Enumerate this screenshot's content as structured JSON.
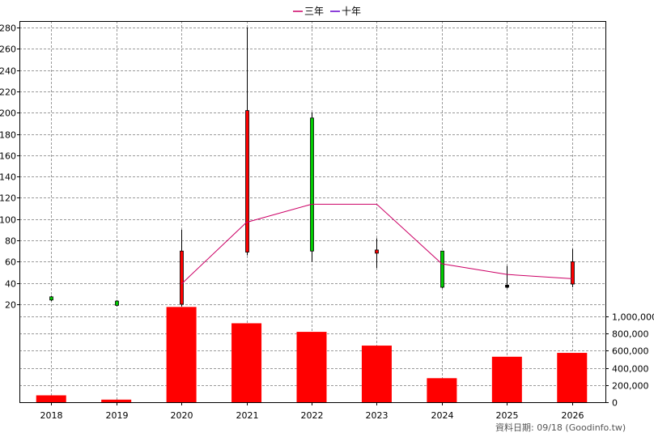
{
  "legend": [
    {
      "label": "三年",
      "color": "#cc0066"
    },
    {
      "label": "十年",
      "color": "#6600cc"
    }
  ],
  "footer": "資料日期: 09/18  (Goodinfo.tw)",
  "chart_data": {
    "type": "candlestick+line+bar",
    "categories": [
      "2018",
      "2019",
      "2020",
      "2021",
      "2022",
      "2023",
      "2024",
      "2025",
      "2026"
    ],
    "price_axis": {
      "ylim": [
        20,
        280
      ],
      "ticks": [
        20,
        40,
        60,
        80,
        100,
        120,
        140,
        160,
        180,
        200,
        220,
        240,
        260,
        280
      ]
    },
    "volume_axis": {
      "ylim": [
        0,
        1000000
      ],
      "ticks": [
        0,
        200000,
        400000,
        600000,
        800000,
        1000000
      ],
      "tick_labels": [
        "0",
        "200,000",
        "400,000",
        "600,000",
        "800,000",
        "1,000,000"
      ]
    },
    "candles": [
      {
        "year": "2018",
        "open": 24,
        "close": 27,
        "high": 28,
        "low": 23,
        "color": "#00cc00"
      },
      {
        "year": "2019",
        "open": 19,
        "close": 23,
        "high": 24,
        "low": 18,
        "color": "#00cc00"
      },
      {
        "year": "2020",
        "open": 20,
        "close": 70,
        "high": 90,
        "low": 18,
        "color": "#ff0000"
      },
      {
        "year": "2021",
        "open": 69,
        "close": 202,
        "high": 280,
        "low": 66,
        "color": "#ff0000"
      },
      {
        "year": "2022",
        "open": 195,
        "close": 70,
        "high": 200,
        "low": 60,
        "color": "#00cc00"
      },
      {
        "year": "2023",
        "open": 68,
        "close": 71,
        "high": 82,
        "low": 54,
        "color": "#ff0000"
      },
      {
        "year": "2024",
        "open": 70,
        "close": 36,
        "high": 70,
        "low": 35,
        "color": "#00cc00"
      },
      {
        "year": "2025",
        "open": 38,
        "close": 36,
        "high": 56,
        "low": 35,
        "color": "#000000"
      },
      {
        "year": "2026",
        "open": 39,
        "close": 60,
        "high": 72,
        "low": 36,
        "color": "#ff0000"
      }
    ],
    "line_series": [
      {
        "name": "三年",
        "color": "#cc0066",
        "points": [
          [
            "2020",
            39
          ],
          [
            "2021",
            97
          ],
          [
            "2022",
            114
          ],
          [
            "2023",
            114
          ],
          [
            "2024",
            58
          ],
          [
            "2025",
            48
          ],
          [
            "2026",
            44
          ]
        ]
      }
    ],
    "volume": [
      {
        "year": "2018",
        "value": 80000
      },
      {
        "year": "2019",
        "value": 30000
      },
      {
        "year": "2020",
        "value": 1110000
      },
      {
        "year": "2021",
        "value": 920000
      },
      {
        "year": "2022",
        "value": 820000
      },
      {
        "year": "2023",
        "value": 660000
      },
      {
        "year": "2024",
        "value": 280000
      },
      {
        "year": "2025",
        "value": 530000
      },
      {
        "year": "2026",
        "value": 575000
      }
    ],
    "volume_color": "#ff0000",
    "grid": true
  }
}
